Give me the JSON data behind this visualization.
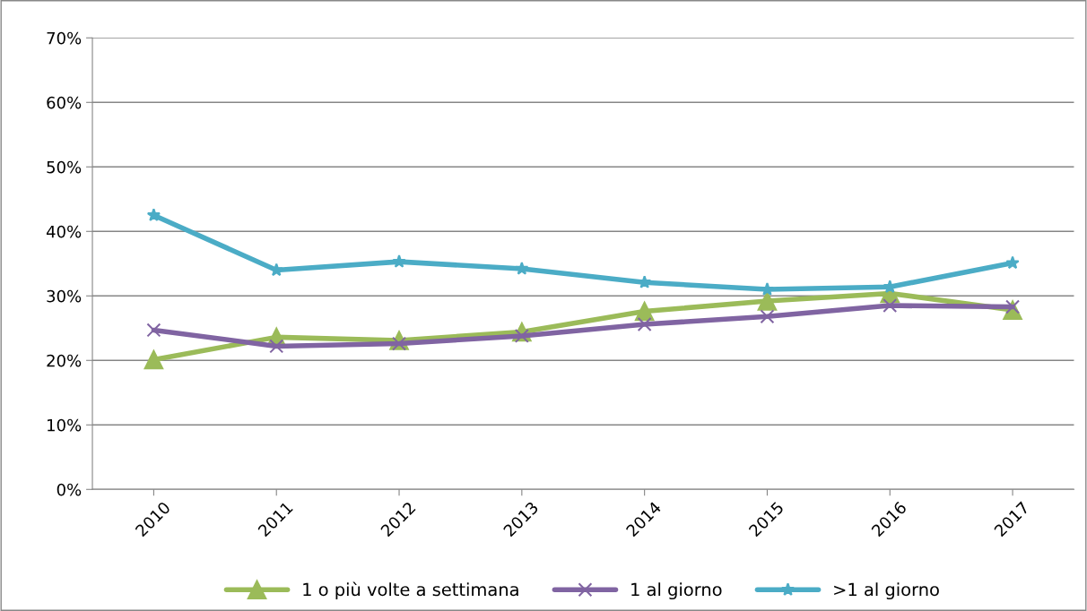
{
  "chart_data": {
    "type": "line",
    "categories": [
      "2010",
      "2011",
      "2012",
      "2013",
      "2014",
      "2015",
      "2016",
      "2017"
    ],
    "series": [
      {
        "name": "1 o più volte a settimana",
        "color": "#9bbb59",
        "marker": "triangle",
        "values": [
          20.1,
          23.6,
          23.1,
          24.4,
          27.6,
          29.2,
          30.4,
          27.8
        ]
      },
      {
        "name": "1 al giorno",
        "color": "#8064a2",
        "marker": "cross",
        "values": [
          24.7,
          22.2,
          22.6,
          23.8,
          25.6,
          26.8,
          28.5,
          28.3
        ]
      },
      {
        "name": ">1 al giorno",
        "color": "#4bacc6",
        "marker": "star",
        "values": [
          42.5,
          34.0,
          35.3,
          34.2,
          32.1,
          31.0,
          31.4,
          35.1
        ]
      }
    ],
    "ylim": [
      0,
      70
    ],
    "yticks": [
      {
        "value": 0,
        "label": "0%"
      },
      {
        "value": 10,
        "label": "10%"
      },
      {
        "value": 20,
        "label": "20%"
      },
      {
        "value": 30,
        "label": "30%"
      },
      {
        "value": 40,
        "label": "40%"
      },
      {
        "value": 50,
        "label": "50%"
      },
      {
        "value": 60,
        "label": "60%"
      },
      {
        "value": 70,
        "label": "70%"
      }
    ],
    "grid": "y",
    "legend": "bottom",
    "line_style": "solid"
  }
}
